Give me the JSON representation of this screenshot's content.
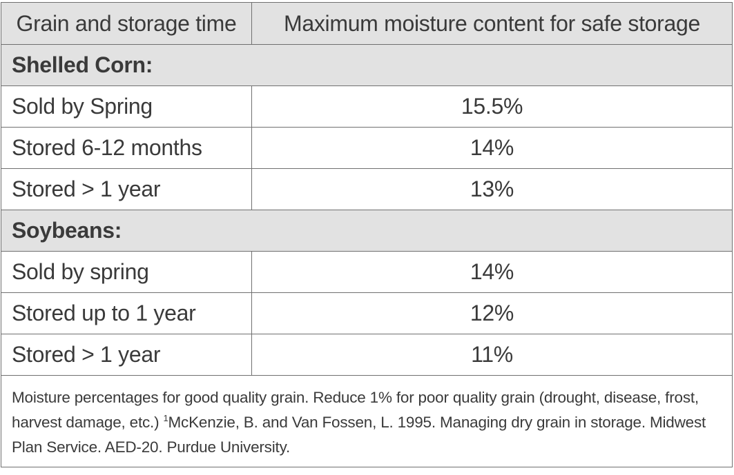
{
  "table": {
    "header": {
      "col1": "Grain and storage time",
      "col2": "Maximum moisture content for safe storage"
    },
    "sections": [
      {
        "title": "Shelled Corn:",
        "rows": [
          {
            "label": "Sold by Spring",
            "value": "15.5%"
          },
          {
            "label": "Stored 6-12 months",
            "value": "14%"
          },
          {
            "label": "Stored > 1 year",
            "value": "13%"
          }
        ]
      },
      {
        "title": "Soybeans:",
        "rows": [
          {
            "label": "Sold by spring",
            "value": "14%"
          },
          {
            "label": "Stored up to 1 year",
            "value": "12%"
          },
          {
            "label": "Stored > 1 year",
            "value": "11%"
          }
        ]
      }
    ]
  },
  "footnote": {
    "text_before": "Moisture percentages for good quality grain. Reduce 1% for poor quality grain (drought, disease, frost, harvest damage, etc.) ",
    "superscript": "1",
    "text_after": "McKenzie, B. and Van Fossen, L. 1995. Managing dry grain in storage. Midwest Plan Service. AED-20. Purdue University."
  }
}
